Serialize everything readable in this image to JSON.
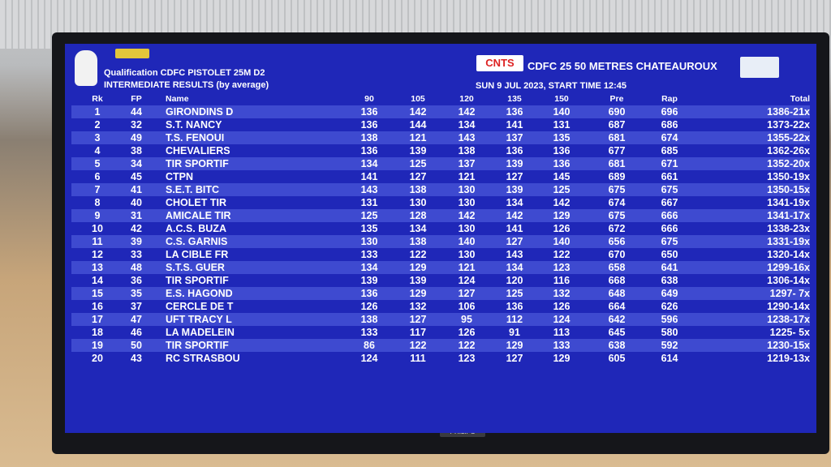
{
  "header": {
    "competition": "Qualification CDFC PISTOLET 25M D2",
    "subtitle": "INTERMEDIATE RESULTS (by average)",
    "logo": "CNTS",
    "venue": "CDFC 25 50 METRES CHATEAUROUX",
    "date": "SUN 9 JUL 2023, START TIME 12:45"
  },
  "table": {
    "columns": [
      "Rk",
      "FP",
      "Name",
      "90",
      "105",
      "120",
      "135",
      "150",
      "Pre",
      "Rap",
      "Total"
    ],
    "rows": [
      [
        "1",
        "44",
        "GIRONDINS D",
        "136",
        "142",
        "142",
        "136",
        "140",
        "690",
        "696",
        "1386-21x"
      ],
      [
        "2",
        "32",
        "S.T. NANCY",
        "136",
        "144",
        "134",
        "141",
        "131",
        "687",
        "686",
        "1373-22x"
      ],
      [
        "3",
        "49",
        "T.S. FENOUI",
        "138",
        "121",
        "143",
        "137",
        "135",
        "681",
        "674",
        "1355-22x"
      ],
      [
        "4",
        "38",
        "CHEVALIERS",
        "136",
        "139",
        "138",
        "136",
        "136",
        "677",
        "685",
        "1362-26x"
      ],
      [
        "5",
        "34",
        "TIR SPORTIF",
        "134",
        "125",
        "137",
        "139",
        "136",
        "681",
        "671",
        "1352-20x"
      ],
      [
        "6",
        "45",
        "CTPN",
        "141",
        "127",
        "121",
        "127",
        "145",
        "689",
        "661",
        "1350-19x"
      ],
      [
        "7",
        "41",
        "S.E.T. BITC",
        "143",
        "138",
        "130",
        "139",
        "125",
        "675",
        "675",
        "1350-15x"
      ],
      [
        "8",
        "40",
        "CHOLET TIR",
        "131",
        "130",
        "130",
        "134",
        "142",
        "674",
        "667",
        "1341-19x"
      ],
      [
        "9",
        "31",
        "AMICALE TIR",
        "125",
        "128",
        "142",
        "142",
        "129",
        "675",
        "666",
        "1341-17x"
      ],
      [
        "10",
        "42",
        "A.C.S. BUZA",
        "135",
        "134",
        "130",
        "141",
        "126",
        "672",
        "666",
        "1338-23x"
      ],
      [
        "11",
        "39",
        "C.S. GARNIS",
        "130",
        "138",
        "140",
        "127",
        "140",
        "656",
        "675",
        "1331-19x"
      ],
      [
        "12",
        "33",
        "LA CIBLE FR",
        "133",
        "122",
        "130",
        "143",
        "122",
        "670",
        "650",
        "1320-14x"
      ],
      [
        "13",
        "48",
        "S.T.S. GUER",
        "134",
        "129",
        "121",
        "134",
        "123",
        "658",
        "641",
        "1299-16x"
      ],
      [
        "14",
        "36",
        "TIR SPORTIF",
        "139",
        "139",
        "124",
        "120",
        "116",
        "668",
        "638",
        "1306-14x"
      ],
      [
        "15",
        "35",
        "E.S. HAGOND",
        "136",
        "129",
        "127",
        "125",
        "132",
        "648",
        "649",
        "1297- 7x"
      ],
      [
        "16",
        "37",
        "CERCLE DE T",
        "126",
        "132",
        "106",
        "136",
        "126",
        "664",
        "626",
        "1290-14x"
      ],
      [
        "17",
        "47",
        "UFT TRACY L",
        "138",
        "127",
        "95",
        "112",
        "124",
        "642",
        "596",
        "1238-17x"
      ],
      [
        "18",
        "46",
        "LA MADELEIN",
        "133",
        "117",
        "126",
        "91",
        "113",
        "645",
        "580",
        "1225- 5x"
      ],
      [
        "19",
        "50",
        "TIR SPORTIF",
        "86",
        "122",
        "122",
        "129",
        "133",
        "638",
        "592",
        "1230-15x"
      ],
      [
        "20",
        "43",
        "RC STRASBOU",
        "124",
        "111",
        "123",
        "127",
        "129",
        "605",
        "614",
        "1219-13x"
      ]
    ]
  },
  "monitor": {
    "brand": "PHILIPS"
  }
}
